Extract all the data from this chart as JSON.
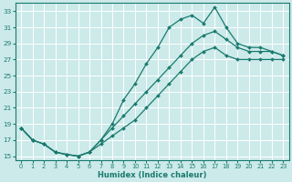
{
  "xlabel": "Humidex (Indice chaleur)",
  "bg_color": "#cceaea",
  "line_color": "#1a7a6e",
  "grid_color": "#ffffff",
  "xlim": [
    -0.5,
    23.5
  ],
  "ylim": [
    14.5,
    34.0
  ],
  "xticks": [
    0,
    1,
    2,
    3,
    4,
    5,
    6,
    7,
    8,
    9,
    10,
    11,
    12,
    13,
    14,
    15,
    16,
    17,
    18,
    19,
    20,
    21,
    22,
    23
  ],
  "yticks": [
    15,
    17,
    19,
    21,
    23,
    25,
    27,
    29,
    31,
    33
  ],
  "line1_x": [
    0,
    1,
    2,
    3,
    4,
    5,
    6,
    7,
    8,
    9,
    10,
    11,
    12,
    13,
    14,
    15,
    16,
    17,
    18,
    19,
    20,
    21,
    22,
    23
  ],
  "line1_y": [
    18.5,
    17.0,
    16.5,
    15.5,
    15.2,
    15.0,
    15.5,
    17.0,
    19.0,
    22.0,
    24.0,
    26.5,
    28.5,
    31.0,
    32.0,
    32.5,
    31.5,
    33.5,
    31.0,
    29.0,
    28.5,
    28.5,
    28.0,
    27.5
  ],
  "line2_x": [
    0,
    1,
    2,
    3,
    4,
    5,
    6,
    7,
    8,
    9,
    10,
    11,
    12,
    13,
    14,
    15,
    16,
    17,
    18,
    19,
    20,
    21,
    22,
    23
  ],
  "line2_y": [
    18.5,
    17.0,
    16.5,
    15.5,
    15.2,
    15.0,
    15.5,
    17.0,
    18.5,
    20.0,
    21.5,
    23.0,
    24.5,
    26.0,
    27.5,
    29.0,
    30.0,
    30.5,
    29.5,
    28.5,
    28.0,
    28.0,
    28.0,
    27.5
  ],
  "line3_x": [
    0,
    1,
    2,
    3,
    4,
    5,
    6,
    7,
    8,
    9,
    10,
    11,
    12,
    13,
    14,
    15,
    16,
    17,
    18,
    19,
    20,
    21,
    22,
    23
  ],
  "line3_y": [
    18.5,
    17.0,
    16.5,
    15.5,
    15.2,
    15.0,
    15.5,
    16.5,
    17.5,
    18.5,
    19.5,
    21.0,
    22.5,
    24.0,
    25.5,
    27.0,
    28.0,
    28.5,
    27.5,
    27.0,
    27.0,
    27.0,
    27.0,
    27.0
  ]
}
